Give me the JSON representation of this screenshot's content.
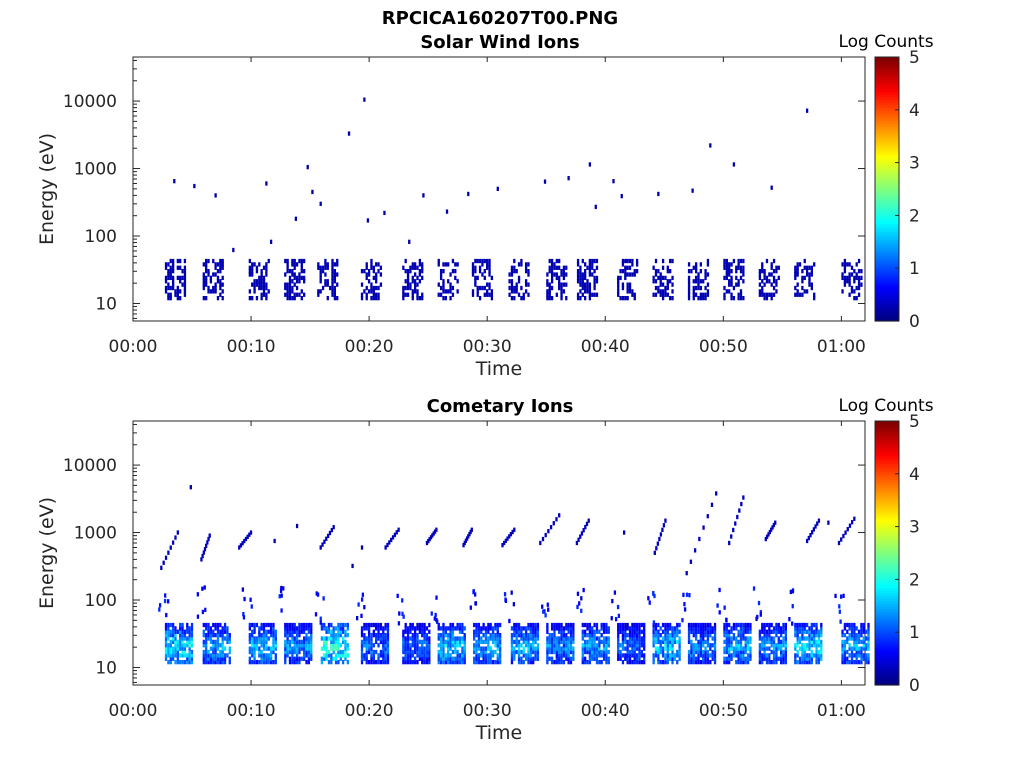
{
  "figure_title": "RPCICA160207T00.PNG",
  "colorbar": {
    "label": "Log Counts",
    "range": [
      0,
      5
    ],
    "tick_labels": [
      "0",
      "1",
      "2",
      "3",
      "4",
      "5"
    ],
    "colormap": "jet"
  },
  "chart_data": [
    {
      "type": "heatmap",
      "title": "Solar Wind Ions",
      "xlabel": "Time",
      "ylabel": "Energy (eV)",
      "yscale": "log",
      "xlim_minutes": [
        0,
        62
      ],
      "ylim": [
        5.5,
        45000
      ],
      "x_tick_labels": [
        "00:00",
        "00:10",
        "00:20",
        "00:30",
        "00:40",
        "00:50",
        "01:00"
      ],
      "y_tick_labels": [
        "10",
        "100",
        "1000",
        "10000"
      ],
      "bursts_minutes": [
        2.7,
        5.9,
        9.8,
        12.8,
        15.6,
        19.3,
        22.8,
        25.8,
        28.7,
        31.8,
        35.0,
        37.6,
        41.0,
        44.0,
        47.0,
        50.0,
        53.0,
        56.0,
        60.0
      ],
      "burst_energy_range_eV": [
        12,
        45
      ],
      "scattered_points": [
        {
          "t": 3.4,
          "e": 650
        },
        {
          "t": 5.1,
          "e": 550
        },
        {
          "t": 6.9,
          "e": 400
        },
        {
          "t": 8.4,
          "e": 62
        },
        {
          "t": 11.2,
          "e": 600
        },
        {
          "t": 11.6,
          "e": 82
        },
        {
          "t": 13.7,
          "e": 180
        },
        {
          "t": 14.7,
          "e": 1050
        },
        {
          "t": 15.1,
          "e": 450
        },
        {
          "t": 15.8,
          "e": 300
        },
        {
          "t": 18.2,
          "e": 3300
        },
        {
          "t": 19.5,
          "e": 10500
        },
        {
          "t": 19.8,
          "e": 170
        },
        {
          "t": 21.2,
          "e": 220
        },
        {
          "t": 23.3,
          "e": 82
        },
        {
          "t": 24.5,
          "e": 400
        },
        {
          "t": 26.5,
          "e": 230
        },
        {
          "t": 28.3,
          "e": 420
        },
        {
          "t": 30.8,
          "e": 500
        },
        {
          "t": 34.8,
          "e": 640
        },
        {
          "t": 36.8,
          "e": 720
        },
        {
          "t": 38.6,
          "e": 1150
        },
        {
          "t": 39.1,
          "e": 270
        },
        {
          "t": 40.6,
          "e": 650
        },
        {
          "t": 41.3,
          "e": 390
        },
        {
          "t": 44.4,
          "e": 420
        },
        {
          "t": 47.3,
          "e": 470
        },
        {
          "t": 48.8,
          "e": 2200
        },
        {
          "t": 50.8,
          "e": 1150
        },
        {
          "t": 54.0,
          "e": 520
        },
        {
          "t": 57.0,
          "e": 7200
        }
      ]
    },
    {
      "type": "heatmap",
      "title": "Cometary Ions",
      "xlabel": "Time",
      "ylabel": "Energy (eV)",
      "yscale": "log",
      "xlim_minutes": [
        0,
        62
      ],
      "ylim": [
        5.5,
        45000
      ],
      "x_tick_labels": [
        "00:00",
        "00:10",
        "00:20",
        "00:30",
        "00:40",
        "00:50",
        "01:00"
      ],
      "y_tick_labels": [
        "10",
        "100",
        "1000",
        "10000"
      ],
      "bursts_minutes": [
        2.7,
        5.9,
        9.8,
        12.8,
        15.9,
        19.3,
        22.8,
        25.8,
        28.8,
        32.0,
        35.0,
        38.0,
        41.0,
        44.0,
        47.0,
        50.0,
        53.0,
        56.0,
        60.0
      ],
      "burst_energy_range_eV": [
        12,
        45
      ],
      "burst_peak_log_counts": [
        2.0,
        1.6,
        1.7,
        1.5,
        2.3,
        1.3,
        1.2,
        1.8,
        1.6,
        1.7,
        1.4,
        1.5,
        1.2,
        1.8,
        1.4,
        1.6,
        1.5,
        1.9,
        1.6
      ],
      "sweeps": [
        {
          "t0": 2.3,
          "t1": 3.7,
          "e0": 300,
          "e1": 1000
        },
        {
          "t0": 5.7,
          "t1": 6.4,
          "e0": 400,
          "e1": 900
        },
        {
          "t0": 8.9,
          "t1": 9.9,
          "e0": 600,
          "e1": 1000
        },
        {
          "t0": 15.8,
          "t1": 16.9,
          "e0": 600,
          "e1": 1200
        },
        {
          "t0": 21.3,
          "t1": 22.4,
          "e0": 600,
          "e1": 1100
        },
        {
          "t0": 24.8,
          "t1": 25.6,
          "e0": 700,
          "e1": 1100
        },
        {
          "t0": 27.9,
          "t1": 28.6,
          "e0": 650,
          "e1": 1100
        },
        {
          "t0": 31.2,
          "t1": 32.2,
          "e0": 650,
          "e1": 1100
        },
        {
          "t0": 34.4,
          "t1": 36.0,
          "e0": 700,
          "e1": 1800
        },
        {
          "t0": 37.5,
          "t1": 38.5,
          "e0": 700,
          "e1": 1500
        },
        {
          "t0": 44.1,
          "t1": 45.0,
          "e0": 500,
          "e1": 1500
        },
        {
          "t0": 46.8,
          "t1": 49.3,
          "e0": 250,
          "e1": 3800
        },
        {
          "t0": 50.4,
          "t1": 51.6,
          "e0": 700,
          "e1": 3300
        },
        {
          "t0": 53.5,
          "t1": 54.3,
          "e0": 800,
          "e1": 1400
        },
        {
          "t0": 57.0,
          "t1": 58.0,
          "e0": 750,
          "e1": 1500
        },
        {
          "t0": 59.7,
          "t1": 61.0,
          "e0": 700,
          "e1": 1600
        }
      ],
      "scattered_points": [
        {
          "t": 4.8,
          "e": 4700
        },
        {
          "t": 13.8,
          "e": 1250
        },
        {
          "t": 11.9,
          "e": 750
        },
        {
          "t": 19.3,
          "e": 600
        },
        {
          "t": 18.5,
          "e": 320
        },
        {
          "t": 41.5,
          "e": 1000
        },
        {
          "t": 58.8,
          "e": 1400
        }
      ]
    }
  ]
}
